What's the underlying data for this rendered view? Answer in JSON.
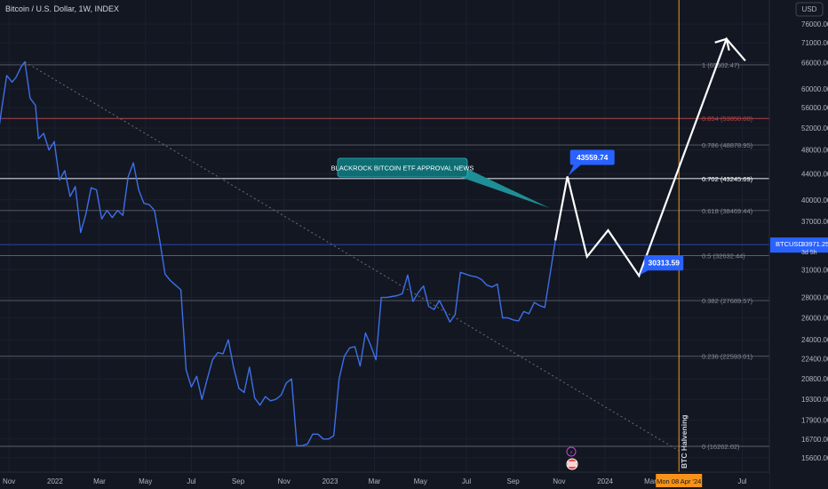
{
  "header": {
    "title": "Bitcoin / U.S. Dollar, 1W, INDEX",
    "currency": "USD"
  },
  "colors": {
    "background": "#131722",
    "price_line": "#3d6fe8",
    "projection": "#ffffff",
    "fib_line": "#868993",
    "fib_red": "#b2434a",
    "label_blue": "#2962ff",
    "teal": "#1e8f96",
    "orange": "#f7931a"
  },
  "chart_data": {
    "type": "line",
    "title": "Bitcoin / U.S. Dollar, 1W, INDEX",
    "xlabel": "",
    "ylabel": "",
    "y_scale": "log",
    "ylim": [
      14800,
      83000
    ],
    "xlim": [
      "2021-10-20",
      "2024-08-06"
    ],
    "x_ticks": [
      {
        "label": "Nov",
        "date": "2021-11-01"
      },
      {
        "label": "2022",
        "date": "2022-01-01"
      },
      {
        "label": "Mar",
        "date": "2022-03-01"
      },
      {
        "label": "May",
        "date": "2022-05-01"
      },
      {
        "label": "Jul",
        "date": "2022-07-01"
      },
      {
        "label": "Sep",
        "date": "2022-09-01"
      },
      {
        "label": "Nov",
        "date": "2022-11-01"
      },
      {
        "label": "2023",
        "date": "2023-01-01"
      },
      {
        "label": "Mar",
        "date": "2023-03-01"
      },
      {
        "label": "May",
        "date": "2023-05-01"
      },
      {
        "label": "Jul",
        "date": "2023-07-01"
      },
      {
        "label": "Sep",
        "date": "2023-09-01"
      },
      {
        "label": "Nov",
        "date": "2023-11-01"
      },
      {
        "label": "2024",
        "date": "2024-01-01"
      },
      {
        "label": "Mar",
        "date": "2024-03-01"
      },
      {
        "label": "Jul",
        "date": "2024-07-01"
      }
    ],
    "y_ticks": [
      76000,
      71000,
      66000,
      60000,
      56000,
      52000,
      48000,
      44000,
      40000,
      37000,
      34000,
      31000,
      28000,
      26000,
      24000,
      22400,
      20800,
      19300,
      17900,
      16700,
      15600
    ],
    "y_tick_labels": [
      "76000.00",
      "71000.00",
      "66000.00",
      "60000.00",
      "56000.00",
      "52000.00",
      "48000.00",
      "44000.00",
      "40000.00",
      "37000.00",
      "34000.00",
      "31000.00",
      "28000.00",
      "26000.00",
      "24000.00",
      "22400.00",
      "20800.00",
      "19300.00",
      "17900.00",
      "16700.00",
      "15600.00"
    ],
    "series": [
      {
        "points": [
          [
            "2021-10-01",
            47500
          ],
          [
            "2021-10-08",
            42000
          ],
          [
            "2021-10-15",
            48500
          ],
          [
            "2021-10-22",
            55500
          ],
          [
            "2021-10-29",
            63000
          ],
          [
            "2021-11-05",
            61500
          ],
          [
            "2021-11-10",
            62500
          ],
          [
            "2021-11-17",
            65000
          ],
          [
            "2021-11-22",
            66200
          ],
          [
            "2021-11-29",
            58000
          ],
          [
            "2021-12-06",
            56500
          ],
          [
            "2021-12-10",
            50000
          ],
          [
            "2021-12-17",
            51000
          ],
          [
            "2021-12-24",
            48000
          ],
          [
            "2021-12-31",
            49500
          ],
          [
            "2022-01-07",
            43000
          ],
          [
            "2022-01-14",
            44500
          ],
          [
            "2022-01-21",
            40500
          ],
          [
            "2022-01-28",
            42000
          ],
          [
            "2022-02-04",
            35500
          ],
          [
            "2022-02-11",
            38000
          ],
          [
            "2022-02-18",
            41800
          ],
          [
            "2022-02-25",
            41500
          ],
          [
            "2022-03-04",
            37300
          ],
          [
            "2022-03-11",
            38500
          ],
          [
            "2022-03-18",
            37500
          ],
          [
            "2022-03-25",
            38500
          ],
          [
            "2022-04-01",
            37800
          ],
          [
            "2022-04-08",
            43500
          ],
          [
            "2022-04-15",
            45800
          ],
          [
            "2022-04-22",
            41500
          ],
          [
            "2022-04-29",
            39500
          ],
          [
            "2022-05-06",
            39300
          ],
          [
            "2022-05-13",
            38500
          ],
          [
            "2022-05-20",
            34500
          ],
          [
            "2022-05-27",
            30500
          ],
          [
            "2022-06-03",
            29800
          ],
          [
            "2022-06-10",
            29300
          ],
          [
            "2022-06-17",
            28800
          ],
          [
            "2022-06-24",
            21500
          ],
          [
            "2022-07-01",
            20200
          ],
          [
            "2022-07-08",
            21000
          ],
          [
            "2022-07-15",
            19300
          ],
          [
            "2022-07-22",
            20800
          ],
          [
            "2022-07-29",
            22300
          ],
          [
            "2022-08-05",
            22900
          ],
          [
            "2022-08-12",
            22800
          ],
          [
            "2022-08-19",
            24000
          ],
          [
            "2022-08-26",
            21700
          ],
          [
            "2022-09-02",
            20100
          ],
          [
            "2022-09-09",
            19800
          ],
          [
            "2022-09-16",
            21700
          ],
          [
            "2022-09-23",
            19400
          ],
          [
            "2022-09-30",
            18900
          ],
          [
            "2022-10-07",
            19500
          ],
          [
            "2022-10-14",
            19200
          ],
          [
            "2022-10-21",
            19300
          ],
          [
            "2022-10-28",
            19600
          ],
          [
            "2022-11-04",
            20500
          ],
          [
            "2022-11-11",
            20800
          ],
          [
            "2022-11-18",
            16300
          ],
          [
            "2022-11-25",
            16300
          ],
          [
            "2022-12-02",
            16400
          ],
          [
            "2022-12-09",
            17000
          ],
          [
            "2022-12-16",
            17000
          ],
          [
            "2022-12-23",
            16700
          ],
          [
            "2022-12-30",
            16700
          ],
          [
            "2023-01-06",
            16900
          ],
          [
            "2023-01-13",
            20800
          ],
          [
            "2023-01-20",
            22600
          ],
          [
            "2023-01-27",
            23300
          ],
          [
            "2023-02-03",
            23400
          ],
          [
            "2023-02-10",
            21800
          ],
          [
            "2023-02-17",
            24600
          ],
          [
            "2023-02-24",
            23500
          ],
          [
            "2023-03-03",
            22300
          ],
          [
            "2023-03-10",
            28000
          ],
          [
            "2023-03-17",
            28000
          ],
          [
            "2023-03-24",
            28100
          ],
          [
            "2023-03-31",
            28200
          ],
          [
            "2023-04-07",
            28400
          ],
          [
            "2023-04-14",
            30400
          ],
          [
            "2023-04-21",
            27600
          ],
          [
            "2023-04-28",
            28500
          ],
          [
            "2023-05-05",
            29200
          ],
          [
            "2023-05-12",
            27100
          ],
          [
            "2023-05-19",
            26800
          ],
          [
            "2023-05-26",
            27700
          ],
          [
            "2023-06-02",
            26700
          ],
          [
            "2023-06-09",
            25600
          ],
          [
            "2023-06-16",
            26300
          ],
          [
            "2023-06-23",
            30700
          ],
          [
            "2023-06-30",
            30500
          ],
          [
            "2023-07-07",
            30300
          ],
          [
            "2023-07-14",
            30200
          ],
          [
            "2023-07-21",
            29900
          ],
          [
            "2023-07-28",
            29300
          ],
          [
            "2023-08-04",
            29100
          ],
          [
            "2023-08-11",
            29400
          ],
          [
            "2023-08-18",
            26000
          ],
          [
            "2023-08-25",
            26000
          ],
          [
            "2023-09-01",
            25800
          ],
          [
            "2023-09-08",
            25700
          ],
          [
            "2023-09-15",
            26600
          ],
          [
            "2023-09-22",
            26400
          ],
          [
            "2023-09-29",
            27500
          ],
          [
            "2023-10-06",
            27200
          ],
          [
            "2023-10-13",
            27000
          ],
          [
            "2023-10-20",
            30500
          ],
          [
            "2023-10-27",
            34500
          ]
        ]
      }
    ],
    "projection": [
      [
        "2023-10-27",
        34500
      ],
      [
        "2023-11-12",
        43559.74
      ],
      [
        "2023-12-08",
        32500
      ],
      [
        "2024-01-05",
        35800
      ],
      [
        "2024-02-15",
        30313.59
      ],
      [
        "2024-06-10",
        72000
      ],
      [
        "2024-07-05",
        66500
      ]
    ],
    "trendline": [
      [
        "2021-11-22",
        66200
      ],
      [
        "2024-04-08",
        16000
      ]
    ],
    "fib_levels": [
      {
        "ratio": "1",
        "value": 65502.47,
        "label": "1 (65502.47)",
        "style": "normal"
      },
      {
        "ratio": "0.854",
        "value": 53850,
        "label": "0.854 (53850.00)",
        "style": "red"
      },
      {
        "ratio": "0.786",
        "value": 48878.95,
        "label": "0.786 (48878.95)",
        "style": "normal"
      },
      {
        "ratio": "0.702",
        "value": 43245.69,
        "label": "0.702 (43245.69)",
        "style": "bold"
      },
      {
        "ratio": "0.618",
        "value": 38469.44,
        "label": "0.618 (38469.44)",
        "style": "normal"
      },
      {
        "ratio": "0.5",
        "value": 32632.44,
        "label": "0.5 (32632.44)",
        "style": "normal"
      },
      {
        "ratio": "0.382",
        "value": 27689.57,
        "label": "0.382 (27689.57)",
        "style": "normal"
      },
      {
        "ratio": "0.236",
        "value": 22593.01,
        "label": "0.236 (22593.01)",
        "style": "normal"
      },
      {
        "ratio": "0",
        "value": 16262.02,
        "label": "0 (16262.02)",
        "style": "normal"
      }
    ],
    "annotations": {
      "etf_callout": {
        "text": "BLACKROCK BITCOIN ETF APPROVAL NEWS",
        "point": [
          "2023-10-20",
          38800
        ]
      },
      "peak_label": {
        "text": "43559.74",
        "value": 43559.74
      },
      "low_label": {
        "text": "30313.59",
        "value": 30313.59
      },
      "current_price": {
        "symbol": "BTCUSD",
        "price": "33971.25",
        "countdown": "3d 5h",
        "value": 33971.25
      },
      "halving": {
        "text": "BTC Halvening",
        "date": "2024-04-08",
        "date_label": "Mon 08 Apr '24"
      }
    }
  }
}
